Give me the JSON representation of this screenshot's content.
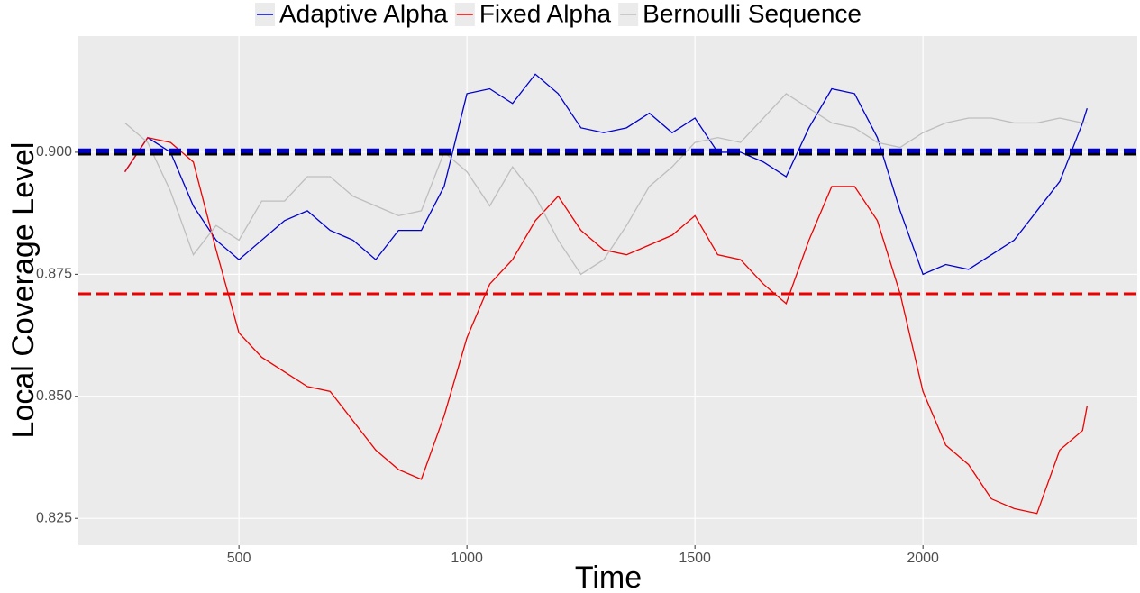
{
  "chart_data": {
    "type": "line",
    "x_label": "Time",
    "y_label": "Local Coverage Level",
    "x": [
      250,
      300,
      350,
      400,
      450,
      500,
      550,
      600,
      650,
      700,
      750,
      800,
      850,
      900,
      950,
      1000,
      1050,
      1100,
      1150,
      1200,
      1250,
      1300,
      1350,
      1400,
      1450,
      1500,
      1550,
      1600,
      1650,
      1700,
      1750,
      1800,
      1850,
      1900,
      1950,
      2000,
      2050,
      2100,
      2150,
      2200,
      2250,
      2300,
      2350,
      2360
    ],
    "series": [
      {
        "name": "Adaptive Alpha",
        "color": "#0000cd",
        "values": [
          0.896,
          0.903,
          0.9,
          0.889,
          0.882,
          0.878,
          0.882,
          0.886,
          0.888,
          0.884,
          0.882,
          0.878,
          0.884,
          0.884,
          0.893,
          0.912,
          0.913,
          0.91,
          0.916,
          0.912,
          0.905,
          0.904,
          0.905,
          0.908,
          0.904,
          0.907,
          0.9,
          0.9,
          0.898,
          0.895,
          0.905,
          0.913,
          0.912,
          0.903,
          0.888,
          0.875,
          0.877,
          0.876,
          0.879,
          0.882,
          0.888,
          0.894,
          0.906,
          0.909
        ]
      },
      {
        "name": "Fixed Alpha",
        "color": "#ee0000",
        "values": [
          0.896,
          0.903,
          0.902,
          0.898,
          0.88,
          0.863,
          0.858,
          0.855,
          0.852,
          0.851,
          0.845,
          0.839,
          0.835,
          0.833,
          0.846,
          0.862,
          0.873,
          0.878,
          0.886,
          0.891,
          0.884,
          0.88,
          0.879,
          0.881,
          0.883,
          0.887,
          0.879,
          0.878,
          0.873,
          0.869,
          0.882,
          0.893,
          0.893,
          0.886,
          0.871,
          0.851,
          0.84,
          0.836,
          0.829,
          0.827,
          0.826,
          0.839,
          0.843,
          0.848
        ]
      },
      {
        "name": "Bernoulli Sequence",
        "color": "#bebebe",
        "values": [
          0.906,
          0.902,
          0.892,
          0.879,
          0.885,
          0.882,
          0.89,
          0.89,
          0.895,
          0.895,
          0.891,
          0.889,
          0.887,
          0.888,
          0.9,
          0.896,
          0.889,
          0.897,
          0.891,
          0.882,
          0.875,
          0.878,
          0.885,
          0.893,
          0.897,
          0.902,
          0.903,
          0.902,
          0.907,
          0.912,
          0.909,
          0.906,
          0.905,
          0.902,
          0.901,
          0.904,
          0.906,
          0.907,
          0.907,
          0.906,
          0.906,
          0.907,
          0.906,
          0.906
        ]
      }
    ],
    "hlines": [
      {
        "value": 0.8998,
        "color": "#000000"
      },
      {
        "value": 0.9003,
        "color": "#0000cd"
      },
      {
        "value": 0.871,
        "color": "#ee0000"
      }
    ],
    "xlim": [
      148,
      2470
    ],
    "ylim": [
      0.8195,
      0.9238
    ],
    "xticks": [
      500,
      1000,
      1500,
      2000
    ],
    "yticks": [
      0.825,
      {
        "value": 0.85,
        "label": "0.850"
      },
      0.875,
      {
        "value": 0.9,
        "label": "0.900"
      }
    ],
    "grid": true,
    "legend_position": "top"
  }
}
